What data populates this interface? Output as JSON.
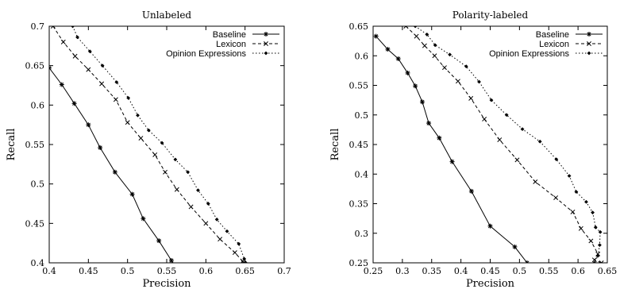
{
  "chart_data": [
    {
      "type": "line",
      "title": "Unlabeled",
      "xlabel": "Precision",
      "ylabel": "Recall",
      "xlim": [
        0.4,
        0.7
      ],
      "ylim": [
        0.4,
        0.7
      ],
      "xticks": [
        0.4,
        0.45,
        0.5,
        0.55,
        0.6,
        0.65,
        0.7
      ],
      "xtick_labels": [
        "0.4",
        "0.45",
        "0.5",
        "0.55",
        "0.6",
        "0.65",
        "0.7"
      ],
      "yticks": [
        0.4,
        0.45,
        0.5,
        0.55,
        0.6,
        0.65,
        0.7
      ],
      "ytick_labels": [
        "0.4",
        "0.45",
        "0.5",
        "0.55",
        "0.6",
        "0.65",
        "0.7"
      ],
      "legend_position": "top-right",
      "series": [
        {
          "name": "Baseline",
          "style": "solid",
          "marker": "asterisk",
          "points": [
            [
              0.4,
              0.647
            ],
            [
              0.416,
              0.626
            ],
            [
              0.432,
              0.602
            ],
            [
              0.45,
              0.575
            ],
            [
              0.465,
              0.546
            ],
            [
              0.484,
              0.515
            ],
            [
              0.506,
              0.487
            ],
            [
              0.52,
              0.456
            ],
            [
              0.54,
              0.428
            ],
            [
              0.556,
              0.403
            ],
            [
              0.56,
              0.397
            ]
          ]
        },
        {
          "name": "Lexicon",
          "style": "dashed",
          "marker": "x",
          "points": [
            [
              0.405,
              0.7
            ],
            [
              0.418,
              0.68
            ],
            [
              0.433,
              0.662
            ],
            [
              0.45,
              0.645
            ],
            [
              0.467,
              0.627
            ],
            [
              0.485,
              0.607
            ],
            [
              0.5,
              0.578
            ],
            [
              0.517,
              0.558
            ],
            [
              0.535,
              0.537
            ],
            [
              0.548,
              0.515
            ],
            [
              0.563,
              0.493
            ],
            [
              0.581,
              0.471
            ],
            [
              0.6,
              0.45
            ],
            [
              0.618,
              0.43
            ],
            [
              0.637,
              0.413
            ],
            [
              0.647,
              0.402
            ],
            [
              0.648,
              0.4
            ]
          ]
        },
        {
          "name": "Opinion Expressions",
          "style": "dotted",
          "marker": "diamond",
          "points": [
            [
              0.43,
              0.7
            ],
            [
              0.436,
              0.686
            ],
            [
              0.452,
              0.668
            ],
            [
              0.468,
              0.65
            ],
            [
              0.486,
              0.629
            ],
            [
              0.501,
              0.609
            ],
            [
              0.513,
              0.587
            ],
            [
              0.527,
              0.568
            ],
            [
              0.544,
              0.552
            ],
            [
              0.561,
              0.531
            ],
            [
              0.577,
              0.515
            ],
            [
              0.59,
              0.492
            ],
            [
              0.603,
              0.475
            ],
            [
              0.614,
              0.455
            ],
            [
              0.627,
              0.44
            ],
            [
              0.642,
              0.424
            ],
            [
              0.649,
              0.405
            ],
            [
              0.651,
              0.4
            ]
          ]
        }
      ]
    },
    {
      "type": "line",
      "title": "Polarity-labeled",
      "xlabel": "Precision",
      "ylabel": "Recall",
      "xlim": [
        0.25,
        0.65
      ],
      "ylim": [
        0.25,
        0.65
      ],
      "xticks": [
        0.25,
        0.3,
        0.35,
        0.4,
        0.45,
        0.5,
        0.55,
        0.6,
        0.65
      ],
      "xtick_labels": [
        "0.25",
        "0.3",
        "0.35",
        "0.4",
        "0.45",
        "0.5",
        "0.55",
        "0.6",
        "0.65"
      ],
      "yticks": [
        0.25,
        0.3,
        0.35,
        0.4,
        0.45,
        0.5,
        0.55,
        0.6,
        0.65
      ],
      "ytick_labels": [
        "0.25",
        "0.3",
        "0.35",
        "0.4",
        "0.45",
        "0.5",
        "0.55",
        "0.6",
        "0.65"
      ],
      "legend_position": "top-right",
      "series": [
        {
          "name": "Baseline",
          "style": "solid",
          "marker": "asterisk",
          "points": [
            [
              0.255,
              0.633
            ],
            [
              0.275,
              0.611
            ],
            [
              0.293,
              0.595
            ],
            [
              0.309,
              0.571
            ],
            [
              0.322,
              0.549
            ],
            [
              0.334,
              0.522
            ],
            [
              0.345,
              0.486
            ],
            [
              0.363,
              0.461
            ],
            [
              0.385,
              0.421
            ],
            [
              0.418,
              0.371
            ],
            [
              0.45,
              0.312
            ],
            [
              0.492,
              0.277
            ],
            [
              0.513,
              0.25
            ]
          ]
        },
        {
          "name": "Lexicon",
          "style": "dashed",
          "marker": "x",
          "points": [
            [
              0.306,
              0.65
            ],
            [
              0.324,
              0.633
            ],
            [
              0.338,
              0.617
            ],
            [
              0.355,
              0.6
            ],
            [
              0.372,
              0.58
            ],
            [
              0.395,
              0.557
            ],
            [
              0.417,
              0.528
            ],
            [
              0.44,
              0.493
            ],
            [
              0.466,
              0.458
            ],
            [
              0.496,
              0.424
            ],
            [
              0.527,
              0.387
            ],
            [
              0.562,
              0.36
            ],
            [
              0.591,
              0.336
            ],
            [
              0.605,
              0.308
            ],
            [
              0.622,
              0.287
            ],
            [
              0.634,
              0.265
            ],
            [
              0.628,
              0.255
            ],
            [
              0.64,
              0.25
            ]
          ]
        },
        {
          "name": "Opinion Expressions",
          "style": "dotted",
          "marker": "diamond",
          "points": [
            [
              0.322,
              0.65
            ],
            [
              0.342,
              0.636
            ],
            [
              0.356,
              0.618
            ],
            [
              0.381,
              0.602
            ],
            [
              0.409,
              0.582
            ],
            [
              0.431,
              0.556
            ],
            [
              0.452,
              0.525
            ],
            [
              0.478,
              0.5
            ],
            [
              0.505,
              0.476
            ],
            [
              0.535,
              0.455
            ],
            [
              0.563,
              0.425
            ],
            [
              0.585,
              0.397
            ],
            [
              0.597,
              0.37
            ],
            [
              0.614,
              0.353
            ],
            [
              0.625,
              0.335
            ],
            [
              0.63,
              0.31
            ],
            [
              0.638,
              0.302
            ],
            [
              0.637,
              0.28
            ],
            [
              0.634,
              0.262
            ],
            [
              0.628,
              0.25
            ]
          ]
        }
      ]
    }
  ]
}
